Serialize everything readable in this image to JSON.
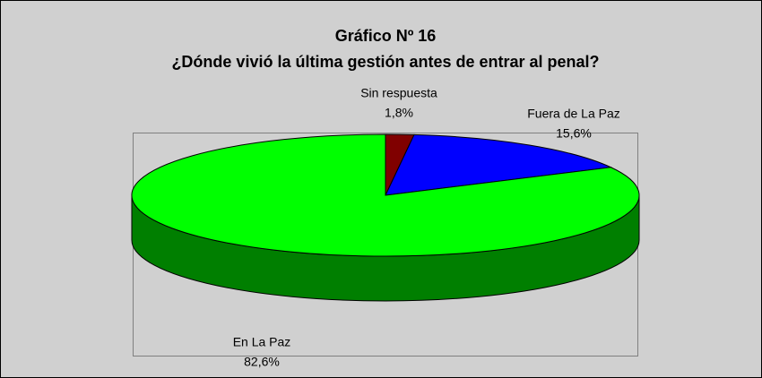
{
  "chart_data": {
    "type": "pie",
    "title": "Gráfico Nº 16",
    "subtitle": "¿Dónde vivió la última gestión antes de entrar al penal?",
    "categories": [
      "Sin respuesta",
      "Fuera de La Paz",
      "En La Paz"
    ],
    "values": [
      1.8,
      15.6,
      82.6
    ],
    "value_labels": [
      "1,8%",
      "15,6%",
      "82,6%"
    ],
    "colors": [
      "#800000",
      "#0000ff",
      "#00ff00"
    ]
  }
}
